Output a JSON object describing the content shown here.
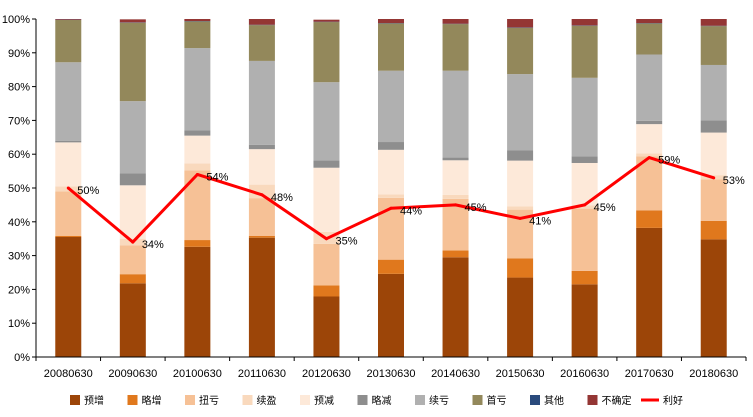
{
  "chart_data": {
    "type": "bar",
    "stacked": true,
    "categories": [
      "20080630",
      "20090630",
      "20100630",
      "20110630",
      "20120630",
      "20130630",
      "20140630",
      "20150630",
      "20160630",
      "20170630",
      "20180630"
    ],
    "ylim": [
      0,
      100
    ],
    "yticks": [
      "0%",
      "10%",
      "20%",
      "30%",
      "40%",
      "50%",
      "60%",
      "70%",
      "80%",
      "90%",
      "100%"
    ],
    "series": [
      {
        "name": "预增",
        "color": "#9c4508",
        "values": [
          35.5,
          21.8,
          32.6,
          35.3,
          17.9,
          24.6,
          29.5,
          23.5,
          21.5,
          38.2,
          34.8
        ]
      },
      {
        "name": "略增",
        "color": "#e0781d",
        "values": [
          0.3,
          2.7,
          2.0,
          0.5,
          3.3,
          4.2,
          2.0,
          5.7,
          4.0,
          5.2,
          5.5
        ]
      },
      {
        "name": "扭亏",
        "color": "#f6c196",
        "values": [
          13.2,
          8.5,
          20.6,
          11.2,
          12.3,
          18.3,
          15.3,
          14.4,
          18.4,
          16.0,
          12.3
        ]
      },
      {
        "name": "续盈",
        "color": "#f9d9bd",
        "values": [
          1.5,
          2.0,
          2.1,
          4.0,
          3.5,
          1.0,
          1.2,
          1.0,
          1.0,
          0.8,
          1.2
        ]
      },
      {
        "name": "预减",
        "color": "#fde9d9",
        "values": [
          13.0,
          15.8,
          8.2,
          10.5,
          19.0,
          13.2,
          10.2,
          13.5,
          12.5,
          8.7,
          12.6
        ]
      },
      {
        "name": "略减",
        "color": "#8e8e8e",
        "values": [
          0.5,
          3.5,
          1.6,
          1.3,
          2.2,
          2.3,
          0.8,
          3.0,
          2.0,
          1.0,
          3.6
        ]
      },
      {
        "name": "续亏",
        "color": "#b0b0b0",
        "values": [
          23.2,
          21.4,
          24.3,
          24.8,
          23.1,
          21.1,
          25.7,
          22.6,
          23.2,
          19.6,
          16.4
        ]
      },
      {
        "name": "首亏",
        "color": "#93885b",
        "values": [
          12.5,
          23.2,
          7.9,
          10.6,
          17.8,
          14.0,
          13.8,
          13.7,
          15.4,
          9.2,
          11.5
        ]
      },
      {
        "name": "其他",
        "color": "#2a4a7c",
        "values": [
          0.1,
          0.1,
          0.1,
          0.1,
          0.1,
          0.1,
          0.1,
          0.1,
          0.1,
          0.1,
          0.1
        ]
      },
      {
        "name": "不确定",
        "color": "#943634",
        "values": [
          0.2,
          0.9,
          0.6,
          1.7,
          0.6,
          1.2,
          1.4,
          2.5,
          1.9,
          1.2,
          2.0
        ]
      }
    ],
    "line": {
      "name": "利好",
      "color": "#ff0000",
      "values": [
        50,
        34,
        54,
        48,
        35,
        44,
        45,
        41,
        45,
        59,
        53
      ],
      "labels": [
        "50%",
        "34%",
        "54%",
        "48%",
        "35%",
        "44%",
        "45%",
        "41%",
        "45%",
        "59%",
        "53%"
      ]
    },
    "legend_position": "bottom"
  }
}
